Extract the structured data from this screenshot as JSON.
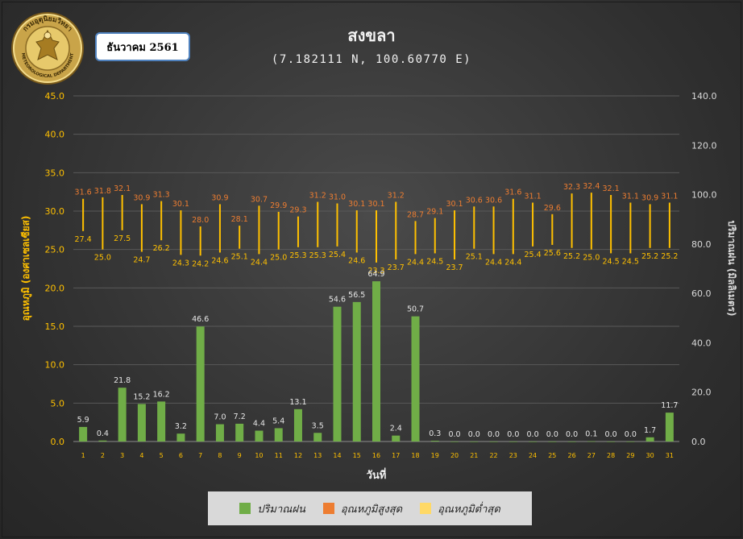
{
  "header": {
    "month_label": "ธันวาคม 2561",
    "title": "สงขลา",
    "subtitle": "(7.182111 N, 100.60770 E)",
    "logo_top_text": "กรมอุตุนิยมวิทยา",
    "logo_bottom_text": "METEOROLOGICAL DEPARTMENT"
  },
  "legend": {
    "items": [
      {
        "label": "ปริมาณฝน",
        "color": "#70ad47"
      },
      {
        "label": "อุณหภูมิสูงสุด",
        "color": "#ed7d31"
      },
      {
        "label": "อุณหภูมิต่ำสุด",
        "color": "#ffd966"
      }
    ]
  },
  "colors": {
    "rain": "#70ad47",
    "temp_range": "#ffc000",
    "max_label": "#ed7d31",
    "min_label": "#ffc000",
    "left_axis": "#ffc000",
    "right_axis": "#d9d9d9",
    "x_tick": "#ffc000",
    "grid": "#595959"
  },
  "chart_data": {
    "type": "bar",
    "xlabel": "วันที่",
    "ylabel_left": "อุณหภูมิ (องศาเซลเซียส)",
    "ylabel_right": "ปริมาณฝน (มิลลิเมตร)",
    "y_left_lim": [
      0,
      45
    ],
    "y_left_ticks": [
      "0.0",
      "5.0",
      "10.0",
      "15.0",
      "20.0",
      "25.0",
      "30.0",
      "35.0",
      "40.0",
      "45.0"
    ],
    "y_right_lim": [
      0,
      140
    ],
    "y_right_ticks": [
      "0.0",
      "20.0",
      "40.0",
      "60.0",
      "80.0",
      "100.0",
      "120.0",
      "140.0"
    ],
    "categories": [
      "1",
      "2",
      "3",
      "4",
      "5",
      "6",
      "7",
      "8",
      "9",
      "10",
      "11",
      "12",
      "13",
      "14",
      "15",
      "16",
      "17",
      "18",
      "19",
      "20",
      "21",
      "22",
      "23",
      "24",
      "25",
      "26",
      "27",
      "28",
      "29",
      "30",
      "31"
    ],
    "grid": true,
    "legend_position": "bottom",
    "series": [
      {
        "name": "ปริมาณฝน",
        "axis": "right",
        "values": [
          5.9,
          0.4,
          21.8,
          15.2,
          16.2,
          3.2,
          46.6,
          7.0,
          7.2,
          4.4,
          5.4,
          13.1,
          3.5,
          54.6,
          56.5,
          64.9,
          2.4,
          50.7,
          0.3,
          0.0,
          0.0,
          0.0,
          0.0,
          0.0,
          0.0,
          0.0,
          0.1,
          0.0,
          0.0,
          1.7,
          11.7
        ],
        "labels": [
          "5.9",
          "0.4",
          "21.8",
          "15.2",
          "16.2",
          "3.2",
          "46.6",
          "7.0",
          "7.2",
          "4.4",
          "5.4",
          "13.1",
          "3.5",
          "54.6",
          "56.5",
          "64.9",
          "2.4",
          "50.7",
          "0.3",
          "0.0",
          "0.0",
          "0.0",
          "0.0",
          "0.0",
          "0.0",
          "0.0",
          "0.1",
          "0.0",
          "0.0",
          "1.7",
          "11.7"
        ]
      },
      {
        "name": "อุณหภูมิสูงสุด",
        "axis": "left",
        "values": [
          31.6,
          31.8,
          32.1,
          30.9,
          31.3,
          30.1,
          28.0,
          30.9,
          28.1,
          30.7,
          29.9,
          29.3,
          31.2,
          31.0,
          30.1,
          30.1,
          31.2,
          28.7,
          29.1,
          30.1,
          30.6,
          30.6,
          31.6,
          31.1,
          29.6,
          32.3,
          32.4,
          32.1,
          31.1,
          30.9,
          31.1
        ],
        "labels": [
          "31.6",
          "31.8",
          "32.1",
          "30.9",
          "31.3",
          "30.1",
          "28.0",
          "30.9",
          "28.1",
          "30.7",
          "29.9",
          "29.3",
          "31.2",
          "31.0",
          "30.1",
          "30.1",
          "31.2",
          "28.7",
          "29.1",
          "30.1",
          "30.6",
          "30.6",
          "31.6",
          "31.1",
          "29.6",
          "32.3",
          "32.4",
          "32.1",
          "31.1",
          "30.9",
          "31.1"
        ]
      },
      {
        "name": "อุณหภูมิต่ำสุด",
        "axis": "left",
        "values": [
          27.4,
          25.0,
          27.5,
          24.7,
          26.2,
          24.3,
          24.2,
          24.6,
          25.1,
          24.4,
          25.0,
          25.3,
          25.3,
          25.4,
          24.6,
          23.3,
          23.7,
          24.4,
          24.5,
          23.7,
          25.1,
          24.4,
          24.4,
          25.4,
          25.6,
          25.2,
          25.0,
          24.5,
          24.5,
          25.2,
          25.2
        ],
        "labels": [
          "27.4",
          "25.0",
          "27.5",
          "24.7",
          "26.2",
          "24.3",
          "24.2",
          "24.6",
          "25.1",
          "24.4",
          "25.0",
          "25.3",
          "25.3",
          "25.4",
          "24.6",
          "23.3",
          "23.7",
          "24.4",
          "24.5",
          "23.7",
          "25.1",
          "24.4",
          "24.4",
          "25.4",
          "25.6",
          "25.2",
          "25.0",
          "24.5",
          "24.5",
          "25.2",
          "25.2"
        ]
      }
    ]
  }
}
